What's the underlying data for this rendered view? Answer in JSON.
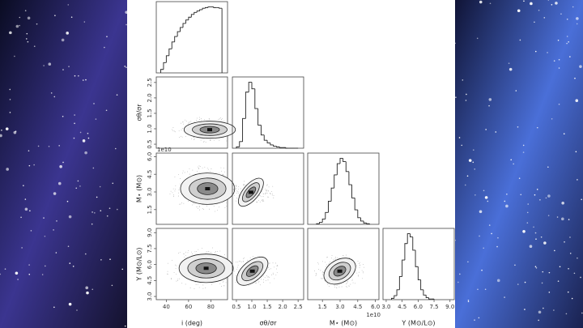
{
  "chart_data": {
    "type": "corner",
    "params": [
      {
        "label": "i (deg)",
        "lim": [
          31,
          95
        ],
        "ticks": [
          40,
          60,
          80
        ]
      },
      {
        "label": "σθ/σr",
        "lim": [
          0.37,
          2.68
        ],
        "ticks": [
          0.5,
          {
            "value": 1,
            "label": "1.0"
          },
          1.5,
          {
            "value": 2,
            "label": "2.0"
          },
          2.5
        ]
      },
      {
        "label": "M⋆ (M⊙)",
        "lim": [
          0.25,
          6.3
        ],
        "ticks": [
          1.5,
          {
            "value": 3,
            "label": "3.0"
          },
          4.5,
          {
            "value": 6,
            "label": "6.0"
          }
        ],
        "offset": "1e10"
      },
      {
        "label": "Y (M⊙/L⊙)",
        "lim": [
          2.7,
          9.4
        ],
        "ticks": [
          {
            "value": 3,
            "label": "3.0"
          },
          4.5,
          {
            "value": 6,
            "label": "6.0"
          },
          7.5,
          {
            "value": 9,
            "label": "9.0"
          }
        ]
      }
    ],
    "histograms": [
      {
        "bins": [
          35,
          37.5,
          40,
          42.5,
          45,
          47.5,
          50,
          52.5,
          55,
          57.5,
          60,
          62.5,
          65,
          67.5,
          70,
          72.5,
          75,
          77.5,
          80,
          82.5,
          85,
          87.5,
          90
        ],
        "counts": [
          5,
          15,
          25,
          35,
          45,
          53,
          60,
          66,
          72,
          77,
          81,
          85,
          88,
          90,
          92,
          94,
          95,
          96,
          96,
          95,
          95,
          94
        ]
      },
      {
        "bins": [
          0.5,
          0.6,
          0.7,
          0.8,
          0.9,
          1.0,
          1.1,
          1.2,
          1.3,
          1.4,
          1.5,
          1.6,
          1.7,
          1.8,
          1.9,
          2.0,
          2.1,
          2.2,
          2.3,
          2.4,
          2.5
        ],
        "counts": [
          2,
          10,
          45,
          85,
          100,
          90,
          60,
          35,
          20,
          12,
          8,
          5,
          3,
          2,
          1,
          1,
          0,
          0,
          0,
          0
        ]
      },
      {
        "bins": [
          1.0,
          1.25,
          1.5,
          1.75,
          2.0,
          2.25,
          2.5,
          2.75,
          3.0,
          3.25,
          3.5,
          3.75,
          4.0,
          4.25,
          4.5,
          4.75,
          5.0,
          5.25,
          5.5
        ],
        "counts": [
          1,
          3,
          8,
          18,
          35,
          55,
          75,
          92,
          100,
          95,
          80,
          60,
          40,
          22,
          10,
          5,
          2,
          1
        ]
      },
      {
        "bins": [
          3.5,
          3.75,
          4.0,
          4.25,
          4.5,
          4.75,
          5.0,
          5.25,
          5.5,
          5.75,
          6.0,
          6.25,
          6.5,
          6.75,
          7.0,
          7.25,
          7.5
        ],
        "counts": [
          2,
          6,
          15,
          35,
          60,
          85,
          100,
          95,
          75,
          50,
          30,
          15,
          7,
          3,
          1,
          1
        ]
      }
    ]
  }
}
